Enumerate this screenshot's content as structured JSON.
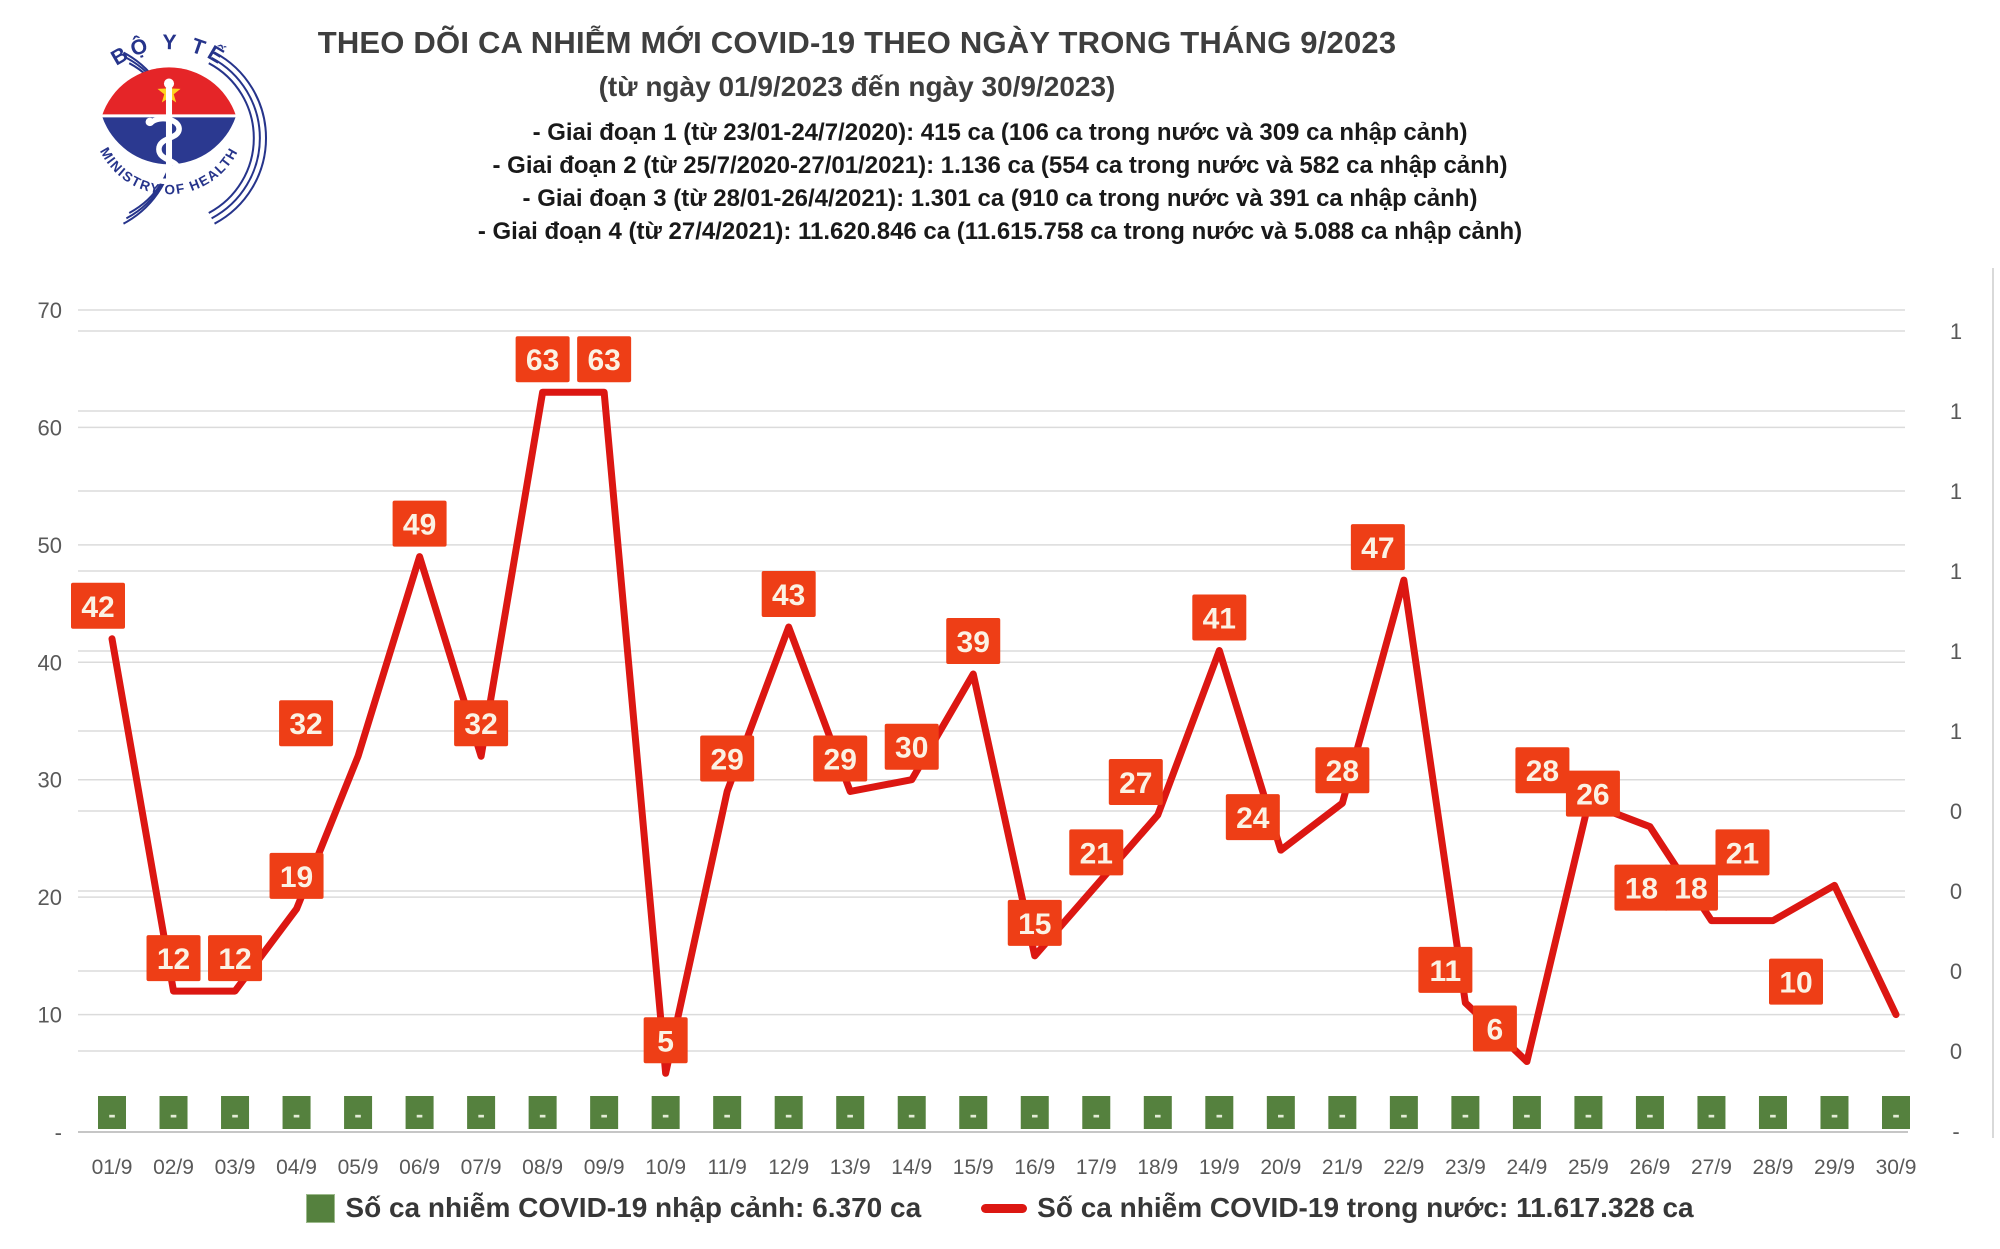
{
  "logo": {
    "top_text": "BỘ Y TẾ",
    "bottom_text": "MINISTRY OF HEALTH"
  },
  "header": {
    "title": "THEO DÕI CA NHIỄM MỚI COVID-19 THEO NGÀY TRONG THÁNG 9/2023",
    "subtitle": "(từ ngày 01/9/2023 đến ngày 30/9/2023)",
    "notes": [
      "- Giai đoạn 1 (từ 23/01-24/7/2020): 415 ca (106 ca trong nước và 309 ca nhập cảnh)",
      "- Giai đoạn 2 (từ 25/7/2020-27/01/2021): 1.136 ca (554 ca trong nước và 582 ca nhập cảnh)",
      "- Giai đoạn 3 (từ 28/01-26/4/2021): 1.301 ca (910 ca trong nước và 391 ca nhập cảnh)",
      "- Giai đoạn 4 (từ 27/4/2021): 11.620.846 ca (11.615.758 ca trong nước và 5.088 ca nhập cảnh)"
    ]
  },
  "chart_data": {
    "type": "line",
    "categories": [
      "01/9",
      "02/9",
      "03/9",
      "04/9",
      "05/9",
      "06/9",
      "07/9",
      "08/9",
      "09/9",
      "10/9",
      "11/9",
      "12/9",
      "13/9",
      "14/9",
      "15/9",
      "16/9",
      "17/9",
      "18/9",
      "19/9",
      "20/9",
      "21/9",
      "22/9",
      "23/9",
      "24/9",
      "25/9",
      "26/9",
      "27/9",
      "28/9",
      "29/9",
      "30/9"
    ],
    "series": [
      {
        "name": "Số ca nhiễm COVID-19 nhập cảnh",
        "type": "bar",
        "axis": "right",
        "color": "#55813E",
        "values": [
          "-",
          "-",
          "-",
          "-",
          "-",
          "-",
          "-",
          "-",
          "-",
          "-",
          "-",
          "-",
          "-",
          "-",
          "-",
          "-",
          "-",
          "-",
          "-",
          "-",
          "-",
          "-",
          "-",
          "-",
          "-",
          "-",
          "-",
          "-",
          "-",
          "-"
        ]
      },
      {
        "name": "Số ca nhiễm COVID-19 trong nước",
        "type": "line",
        "axis": "left",
        "color": "#DC1712",
        "values": [
          42,
          12,
          12,
          19,
          32,
          49,
          32,
          63,
          63,
          5,
          29,
          43,
          29,
          30,
          39,
          15,
          21,
          27,
          41,
          24,
          28,
          47,
          11,
          6,
          28,
          26,
          18,
          18,
          21,
          10
        ]
      }
    ],
    "left_axis": {
      "ticks": [
        "70",
        "60",
        "50",
        "40",
        "30",
        "20",
        "10",
        "-"
      ],
      "min": 0,
      "max": 70
    },
    "right_axis": {
      "ticks": [
        "1",
        "1",
        "1",
        "1",
        "1",
        "1",
        "0",
        "0",
        "0",
        "0",
        "-"
      ],
      "min": 0,
      "max": 1
    },
    "grid": true,
    "legend_position": "bottom",
    "label_style": {
      "fill": "#EE3E16",
      "text_color": "#FBF2E4"
    },
    "label_dx": {
      "0": -14,
      "4": -52,
      "12": -10,
      "17": -22,
      "19": -28,
      "21": -26,
      "22": -20,
      "23": -32,
      "24": -46,
      "25": -57,
      "26": -70,
      "27": -82,
      "28": -92,
      "29": -100
    }
  },
  "legend": [
    {
      "swatch": "square",
      "color": "#55813E",
      "label": "Số ca nhiễm COVID-19 nhập cảnh: 6.370 ca"
    },
    {
      "swatch": "line",
      "color": "#DC1712",
      "label": "Số ca nhiễm COVID-19 trong nước: 11.617.328 ca"
    }
  ]
}
